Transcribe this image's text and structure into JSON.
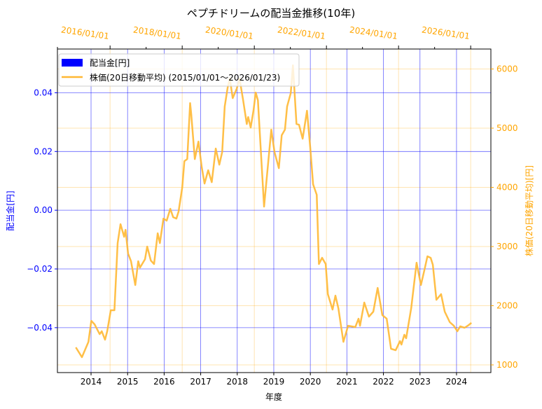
{
  "chart_data": {
    "type": "line",
    "title": "ペプチドリームの配当金推移(10年)",
    "xlabel": "年度",
    "ylabel": "配当金[円]",
    "y2label": "株価(20日移動平均)[円]",
    "xlim": [
      2013.08,
      2024.94
    ],
    "ylim": [
      -0.0553,
      0.0549
    ],
    "x2lim": [
      2014.54,
      2026.56
    ],
    "y2lim": [
      870,
      6337
    ],
    "grid": true,
    "legend_placement": "top-left",
    "x_ticks": [
      "2014",
      "2015",
      "2016",
      "2017",
      "2018",
      "2019",
      "2020",
      "2021",
      "2022",
      "2023",
      "2024"
    ],
    "y_ticks": [
      "−0.04",
      "−0.02",
      "0.00",
      "0.02",
      "0.04"
    ],
    "y_tick_values": [
      -0.04,
      -0.02,
      0,
      0.02,
      0.04
    ],
    "y2_ticks": [
      "1000",
      "2000",
      "3000",
      "4000",
      "5000",
      "6000"
    ],
    "x2_ticks": [
      "2016/01/01",
      "2018/01/01",
      "2020/01/01",
      "2022/01/01",
      "2024/01/01",
      "2026/01/01"
    ],
    "x2_tick_values": [
      2016,
      2018,
      2020,
      2022,
      2024,
      2026
    ],
    "colors": {
      "dividend": "#0000ff",
      "price": "#ffb833",
      "price_axis": "#ffa500"
    },
    "series": [
      {
        "name": "配当金[円]",
        "type": "bar",
        "values": []
      },
      {
        "name": "株価(20日移動平均) (2015/01/01～2026/01/23)",
        "type": "line",
        "axis": "secondary",
        "x": [
          2015.05,
          2015.22,
          2015.4,
          2015.48,
          2015.57,
          2015.71,
          2015.77,
          2015.86,
          2015.92,
          2016.02,
          2016.12,
          2016.21,
          2016.29,
          2016.39,
          2016.43,
          2016.5,
          2016.58,
          2016.7,
          2016.78,
          2016.83,
          2016.97,
          2017.03,
          2017.13,
          2017.22,
          2017.32,
          2017.38,
          2017.48,
          2017.57,
          2017.67,
          2017.75,
          2017.84,
          2017.9,
          2018.0,
          2018.06,
          2018.14,
          2018.22,
          2018.25,
          2018.35,
          2018.45,
          2018.54,
          2018.62,
          2018.72,
          2018.82,
          2018.93,
          2019.03,
          2019.11,
          2019.18,
          2019.26,
          2019.32,
          2019.4,
          2019.51,
          2019.59,
          2019.69,
          2019.79,
          2019.83,
          2019.9,
          2019.98,
          2020.04,
          2020.1,
          2020.27,
          2020.47,
          2020.56,
          2020.68,
          2020.76,
          2020.85,
          2020.91,
          2021.01,
          2021.07,
          2021.17,
          2021.24,
          2021.34,
          2021.46,
          2021.55,
          2021.63,
          2021.73,
          2021.75,
          2021.79,
          2021.88,
          2021.98,
          2022.04,
          2022.17,
          2022.25,
          2022.33,
          2022.47,
          2022.6,
          2022.8,
          2022.89,
          2022.93,
          2023.05,
          2023.18,
          2023.3,
          2023.42,
          2023.55,
          2023.67,
          2023.79,
          2023.92,
          2024.04,
          2024.08,
          2024.16,
          2024.21,
          2024.35,
          2024.5,
          2024.62,
          2024.72,
          2024.8,
          2024.89,
          2024.95,
          2025.05,
          2025.18,
          2025.28,
          2025.42,
          2025.53,
          2025.63,
          2025.71,
          2025.83,
          2025.92,
          2026.02
        ],
        "values": [
          1296,
          1130,
          1390,
          1745,
          1686,
          1520,
          1568,
          1426,
          1568,
          1923,
          1923,
          3058,
          3378,
          3165,
          3283,
          2881,
          2751,
          2349,
          2751,
          2644,
          2786,
          2999,
          2763,
          2704,
          3224,
          3058,
          3472,
          3437,
          3638,
          3496,
          3472,
          3591,
          3993,
          4443,
          4478,
          5424,
          5235,
          4478,
          4774,
          4348,
          4064,
          4289,
          4088,
          4655,
          4383,
          4596,
          5365,
          5685,
          5838,
          5507,
          5661,
          5838,
          5472,
          5070,
          5188,
          5010,
          5306,
          5602,
          5472,
          3674,
          4975,
          4596,
          4324,
          4880,
          4975,
          5365,
          5590,
          6063,
          5070,
          5058,
          4821,
          5294,
          4679,
          4052,
          3875,
          3496,
          2704,
          2810,
          2704,
          2195,
          1935,
          2171,
          1958,
          1390,
          1662,
          1639,
          1781,
          1662,
          2053,
          1816,
          1899,
          2301,
          1840,
          1781,
          1272,
          1248,
          1402,
          1343,
          1509,
          1450,
          1958,
          2727,
          2349,
          2609,
          2834,
          2810,
          2692,
          2100,
          2195,
          1899,
          1722,
          1662,
          1568,
          1651,
          1627,
          1662,
          1710
        ]
      }
    ]
  }
}
